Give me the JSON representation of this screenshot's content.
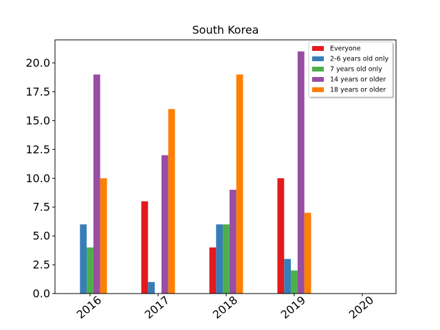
{
  "chart_data": {
    "type": "bar",
    "title": "South Korea",
    "xlabel": "",
    "ylabel": "",
    "categories": [
      "2016",
      "2017",
      "2018",
      "2019",
      "2020"
    ],
    "ylim": [
      0,
      22
    ],
    "yticks": [
      0.0,
      2.5,
      5.0,
      7.5,
      10.0,
      12.5,
      15.0,
      17.5,
      20.0
    ],
    "ytick_labels": [
      "0.0",
      "2.5",
      "5.0",
      "7.5",
      "10.0",
      "12.5",
      "15.0",
      "17.5",
      "20.0"
    ],
    "legend_position": "top-right",
    "grid": false,
    "series": [
      {
        "name": "Everyone",
        "color": "#e41a1c",
        "values": [
          0,
          8,
          4,
          10,
          0
        ]
      },
      {
        "name": "2-6 years old only",
        "color": "#377eb8",
        "values": [
          6,
          1,
          6,
          3,
          0
        ]
      },
      {
        "name": "7 years old only",
        "color": "#4daf4a",
        "values": [
          4,
          0,
          6,
          2,
          0
        ]
      },
      {
        "name": "14 years or older",
        "color": "#984ea3",
        "values": [
          19,
          12,
          9,
          21,
          0
        ]
      },
      {
        "name": "18 years or older",
        "color": "#ff7f00",
        "values": [
          10,
          16,
          19,
          7,
          0
        ]
      }
    ]
  }
}
